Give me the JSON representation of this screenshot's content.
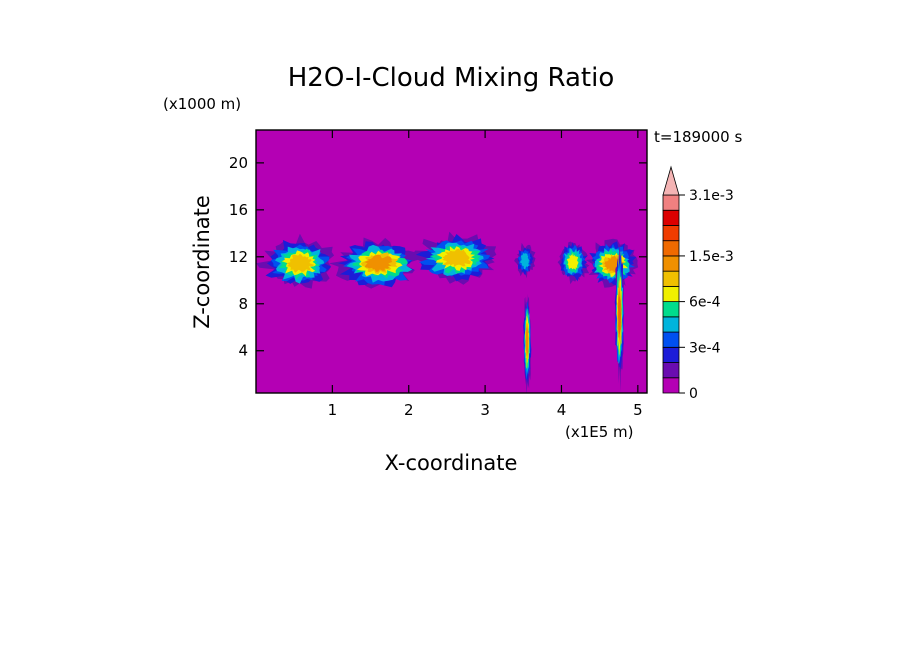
{
  "chart_data": {
    "type": "heatmap",
    "title": "H2O-I-Cloud Mixing Ratio",
    "xlabel": "X-coordinate",
    "ylabel": "Z-coordinate",
    "x_unit": "(x1E5 m)",
    "y_unit": "(x1000 m)",
    "time_label": "t=189000 s",
    "xlim": [
      0,
      5.12
    ],
    "ylim": [
      0.4,
      22.8
    ],
    "x_ticks": [
      1,
      2,
      3,
      4,
      5
    ],
    "y_ticks": [
      4,
      8,
      12,
      16,
      20
    ],
    "background_color": "#b400b4",
    "colorbar": {
      "levels": [
        0,
        0.0001,
        0.0002,
        0.0003,
        0.0004,
        0.0005,
        0.0006,
        0.0009,
        0.0012,
        0.0015,
        0.0019,
        0.0023,
        0.0027,
        0.0031
      ],
      "colors": [
        "#b400b4",
        "#6a0cb0",
        "#1c1cd8",
        "#0050f0",
        "#00b4dc",
        "#00dc8c",
        "#f0f000",
        "#f0c000",
        "#f09000",
        "#f06a00",
        "#f03c00",
        "#dc0000",
        "#f08080"
      ],
      "extend_color": "#f4b4b4",
      "labeled_ticks": [
        {
          "value": 0,
          "label": "0"
        },
        {
          "value": 0.0003,
          "label": "3e-4"
        },
        {
          "value": 0.0006,
          "label": "6e-4"
        },
        {
          "value": 0.0015,
          "label": "1.5e-3"
        },
        {
          "value": 0.0031,
          "label": "3.1e-3"
        }
      ]
    },
    "cloud_regions": [
      {
        "x": [
          0.1,
          1.05
        ],
        "z": [
          9.3,
          13.6
        ],
        "peak": 0.0009
      },
      {
        "x": [
          1.05,
          2.15
        ],
        "z": [
          9.4,
          13.5
        ],
        "peak": 0.0012
      },
      {
        "x": [
          2.1,
          3.15
        ],
        "z": [
          9.8,
          13.9
        ],
        "peak": 0.0009
      },
      {
        "x": [
          3.4,
          3.65
        ],
        "z": [
          10.3,
          13.0
        ],
        "peak": 0.0004
      },
      {
        "x": [
          3.95,
          4.35
        ],
        "z": [
          9.8,
          13.3
        ],
        "peak": 0.0006
      },
      {
        "x": [
          4.35,
          5.0
        ],
        "z": [
          9.5,
          13.3
        ],
        "peak": 0.0012
      },
      {
        "x": [
          3.5,
          3.6
        ],
        "z": [
          0.8,
          8.8
        ],
        "peak": 0.0012
      },
      {
        "x": [
          4.7,
          4.82
        ],
        "z": [
          1.5,
          12.8
        ],
        "peak": 0.0015
      }
    ]
  }
}
